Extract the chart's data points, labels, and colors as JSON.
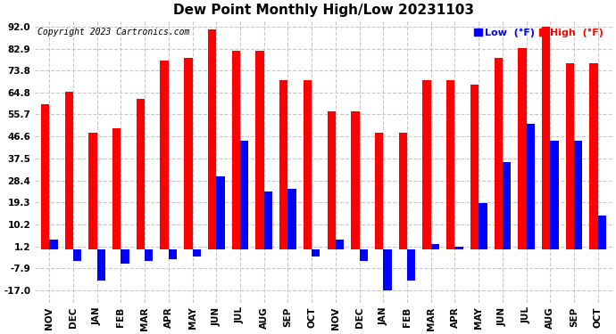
{
  "title": "Dew Point Monthly High/Low 20231103",
  "copyright": "Copyright 2023 Cartronics.com",
  "legend_low": "Low",
  "legend_high": "High",
  "legend_unit": "(°F)",
  "months": [
    "NOV",
    "DEC",
    "JAN",
    "FEB",
    "MAR",
    "APR",
    "MAY",
    "JUN",
    "JUL",
    "AUG",
    "SEP",
    "OCT",
    "NOV",
    "DEC",
    "JAN",
    "FEB",
    "MAR",
    "APR",
    "MAY",
    "JUN",
    "JUL",
    "AUG",
    "SEP",
    "OCT"
  ],
  "high_values": [
    60,
    65,
    48,
    50,
    62,
    78,
    79,
    91,
    82,
    82,
    70,
    70,
    57,
    57,
    48,
    48,
    70,
    70,
    68,
    79,
    83,
    92,
    77,
    77
  ],
  "low_values": [
    4,
    -5,
    -13,
    -6,
    -5,
    -4,
    -3,
    30,
    45,
    24,
    25,
    -3,
    4,
    -5,
    -17,
    -13,
    2,
    1,
    19,
    36,
    52,
    45,
    45,
    14
  ],
  "high_color": "#ff0000",
  "low_color": "#0000ff",
  "background_color": "#ffffff",
  "grid_color": "#c8c8c8",
  "yticks": [
    -17.0,
    -7.9,
    1.2,
    10.2,
    19.3,
    28.4,
    37.5,
    46.6,
    55.7,
    64.8,
    73.8,
    82.9,
    92.0
  ],
  "ylim": [
    -22,
    95
  ],
  "bar_width": 0.35,
  "title_fontsize": 11,
  "tick_fontsize": 7.5,
  "copyright_fontsize": 7,
  "legend_fontsize": 8
}
